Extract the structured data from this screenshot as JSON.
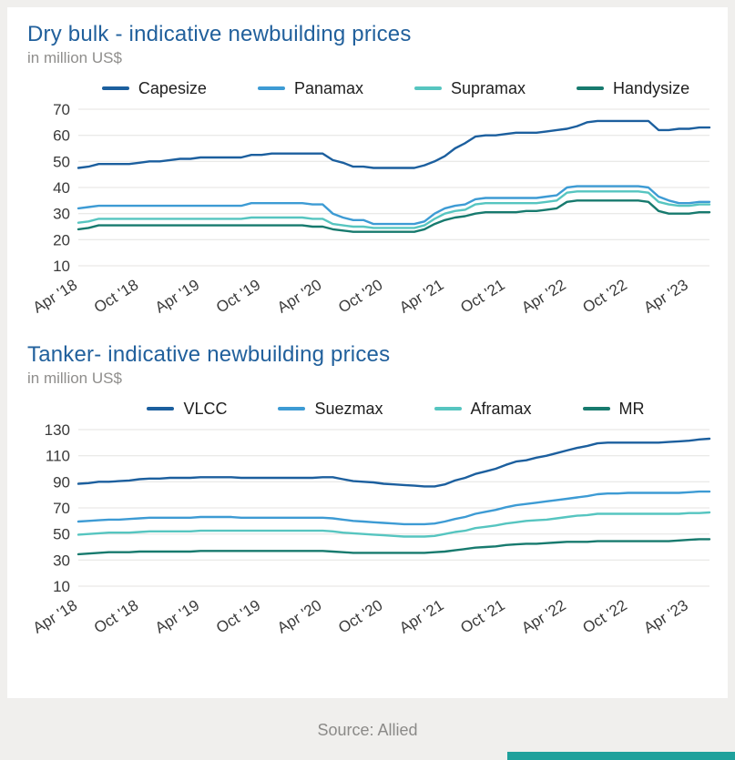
{
  "colors": {
    "title": "#21609c",
    "accent_bar": "#1fa19c"
  },
  "footer": {
    "source_label": "Source: Allied"
  },
  "chart_data": [
    {
      "type": "line",
      "title": "Dry bulk - indicative newbuilding prices",
      "subtitle": "in million US$",
      "xlabel": "",
      "ylabel": "in million US$",
      "ylim": [
        10,
        70
      ],
      "yticks": [
        10,
        20,
        30,
        40,
        50,
        60,
        70
      ],
      "grid": true,
      "legend_position": "top",
      "x_tick_labels": [
        "Apr '18",
        "Oct '18",
        "Apr '19",
        "Oct '19",
        "Apr '20",
        "Oct '20",
        "Apr '21",
        "Oct '21",
        "Apr '22",
        "Oct '22",
        "Apr '23"
      ],
      "x_tick_every": 6,
      "x_unit": "monthly from Apr 2018 to Jun 2023",
      "series": [
        {
          "name": "Capesize",
          "color": "#1c5f9e",
          "values": [
            47.5,
            48,
            49,
            49,
            49,
            49,
            49.5,
            50,
            50,
            50.5,
            51,
            51,
            51.5,
            51.5,
            51.5,
            51.5,
            51.5,
            52.5,
            52.5,
            53,
            53,
            53,
            53,
            53,
            53,
            50.5,
            49.5,
            48,
            48,
            47.5,
            47.5,
            47.5,
            47.5,
            47.5,
            48.5,
            50,
            52,
            55,
            57,
            59.5,
            60,
            60,
            60.5,
            61,
            61,
            61,
            61.5,
            62,
            62.5,
            63.5,
            65,
            65.5,
            65.5,
            65.5,
            65.5,
            65.5,
            65.5,
            62,
            62,
            62.5,
            62.5,
            63,
            63
          ]
        },
        {
          "name": "Panamax",
          "color": "#3d9bd4",
          "values": [
            32,
            32.5,
            33,
            33,
            33,
            33,
            33,
            33,
            33,
            33,
            33,
            33,
            33,
            33,
            33,
            33,
            33,
            34,
            34,
            34,
            34,
            34,
            34,
            33.5,
            33.5,
            30,
            28.5,
            27.5,
            27.5,
            26,
            26,
            26,
            26,
            26,
            27,
            30,
            32,
            33,
            33.5,
            35.5,
            36,
            36,
            36,
            36,
            36,
            36,
            36.5,
            37,
            40,
            40.5,
            40.5,
            40.5,
            40.5,
            40.5,
            40.5,
            40.5,
            40,
            36.5,
            35,
            34,
            34,
            34.5,
            34.5
          ]
        },
        {
          "name": "Supramax",
          "color": "#56c5c0",
          "values": [
            26.5,
            27,
            28,
            28,
            28,
            28,
            28,
            28,
            28,
            28,
            28,
            28,
            28,
            28,
            28,
            28,
            28,
            28.5,
            28.5,
            28.5,
            28.5,
            28.5,
            28.5,
            28,
            28,
            26,
            25.5,
            25,
            25,
            24.5,
            24.5,
            24.5,
            24.5,
            24.5,
            25.5,
            28,
            30,
            31,
            31.5,
            33.5,
            34,
            34,
            34,
            34,
            34,
            34,
            34.5,
            35,
            38,
            38.5,
            38.5,
            38.5,
            38.5,
            38.5,
            38.5,
            38.5,
            38,
            34.5,
            33.5,
            33,
            33,
            33.5,
            33.5
          ]
        },
        {
          "name": "Handysize",
          "color": "#177a6e",
          "values": [
            24,
            24.5,
            25.5,
            25.5,
            25.5,
            25.5,
            25.5,
            25.5,
            25.5,
            25.5,
            25.5,
            25.5,
            25.5,
            25.5,
            25.5,
            25.5,
            25.5,
            25.5,
            25.5,
            25.5,
            25.5,
            25.5,
            25.5,
            25,
            25,
            24,
            23.5,
            23,
            23,
            23,
            23,
            23,
            23,
            23,
            24,
            26,
            27.5,
            28.5,
            29,
            30,
            30.5,
            30.5,
            30.5,
            30.5,
            31,
            31,
            31.5,
            32,
            34.5,
            35,
            35,
            35,
            35,
            35,
            35,
            35,
            34.5,
            31,
            30,
            30,
            30,
            30.5,
            30.5
          ]
        }
      ]
    },
    {
      "type": "line",
      "title": "Tanker- indicative newbuilding prices",
      "subtitle": "in million US$",
      "xlabel": "",
      "ylabel": "in million US$",
      "ylim": [
        10,
        130
      ],
      "yticks": [
        10,
        30,
        50,
        70,
        90,
        110,
        130
      ],
      "grid": true,
      "legend_position": "top",
      "x_tick_labels": [
        "Apr '18",
        "Oct '18",
        "Apr '19",
        "Oct '19",
        "Apr '20",
        "Oct '20",
        "Apr '21",
        "Oct '21",
        "Apr '22",
        "Oct '22",
        "Apr '23"
      ],
      "x_tick_every": 6,
      "x_unit": "monthly from Apr 2018 to Jun 2023",
      "series": [
        {
          "name": "VLCC",
          "color": "#1c5f9e",
          "values": [
            88.5,
            89,
            90,
            90,
            90.5,
            91,
            92,
            92.5,
            92.5,
            93,
            93,
            93,
            93.5,
            93.5,
            93.5,
            93.5,
            93,
            93,
            93,
            93,
            93,
            93,
            93,
            93,
            93.5,
            93.5,
            92,
            90.5,
            90,
            89.5,
            88.5,
            88,
            87.5,
            87,
            86.5,
            86.5,
            88,
            91,
            93,
            96,
            98,
            100,
            103,
            105.5,
            106.5,
            108.5,
            110,
            112,
            114,
            116,
            117.5,
            119.5,
            120,
            120,
            120,
            120,
            120,
            120,
            120.5,
            121,
            121.5,
            122.5,
            123
          ]
        },
        {
          "name": "Suezmax",
          "color": "#3d9bd4",
          "values": [
            59.5,
            60,
            60.5,
            61,
            61,
            61.5,
            62,
            62.5,
            62.5,
            62.5,
            62.5,
            62.5,
            63,
            63,
            63,
            63,
            62.5,
            62.5,
            62.5,
            62.5,
            62.5,
            62.5,
            62.5,
            62.5,
            62.5,
            62,
            61,
            60,
            59.5,
            59,
            58.5,
            58,
            57.5,
            57.5,
            57.5,
            58,
            59.5,
            61.5,
            63,
            65.5,
            67,
            68.5,
            70.5,
            72,
            73,
            74,
            75,
            76,
            77,
            78,
            79,
            80.5,
            81,
            81,
            81.5,
            81.5,
            81.5,
            81.5,
            81.5,
            81.5,
            82,
            82.5,
            82.5
          ]
        },
        {
          "name": "Aframax",
          "color": "#56c5c0",
          "values": [
            49.5,
            50,
            50.5,
            51,
            51,
            51,
            51.5,
            52,
            52,
            52,
            52,
            52,
            52.5,
            52.5,
            52.5,
            52.5,
            52.5,
            52.5,
            52.5,
            52.5,
            52.5,
            52.5,
            52.5,
            52.5,
            52.5,
            52,
            51,
            50.5,
            50,
            49.5,
            49,
            48.5,
            48,
            48,
            48,
            48.5,
            50,
            51.5,
            52.5,
            54.5,
            55.5,
            56.5,
            58,
            59,
            60,
            60.5,
            61,
            62,
            63,
            64,
            64.5,
            65.5,
            65.5,
            65.5,
            65.5,
            65.5,
            65.5,
            65.5,
            65.5,
            65.5,
            66,
            66,
            66.5
          ]
        },
        {
          "name": "MR",
          "color": "#177a6e",
          "values": [
            34.5,
            35,
            35.5,
            36,
            36,
            36,
            36.5,
            36.5,
            36.5,
            36.5,
            36.5,
            36.5,
            37,
            37,
            37,
            37,
            37,
            37,
            37,
            37,
            37,
            37,
            37,
            37,
            37,
            36.5,
            36,
            35.5,
            35.5,
            35.5,
            35.5,
            35.5,
            35.5,
            35.5,
            35.5,
            36,
            36.5,
            37.5,
            38.5,
            39.5,
            40,
            40.5,
            41.5,
            42,
            42.5,
            42.5,
            43,
            43.5,
            44,
            44,
            44,
            44.5,
            44.5,
            44.5,
            44.5,
            44.5,
            44.5,
            44.5,
            44.5,
            45,
            45.5,
            46,
            46
          ]
        }
      ]
    }
  ]
}
